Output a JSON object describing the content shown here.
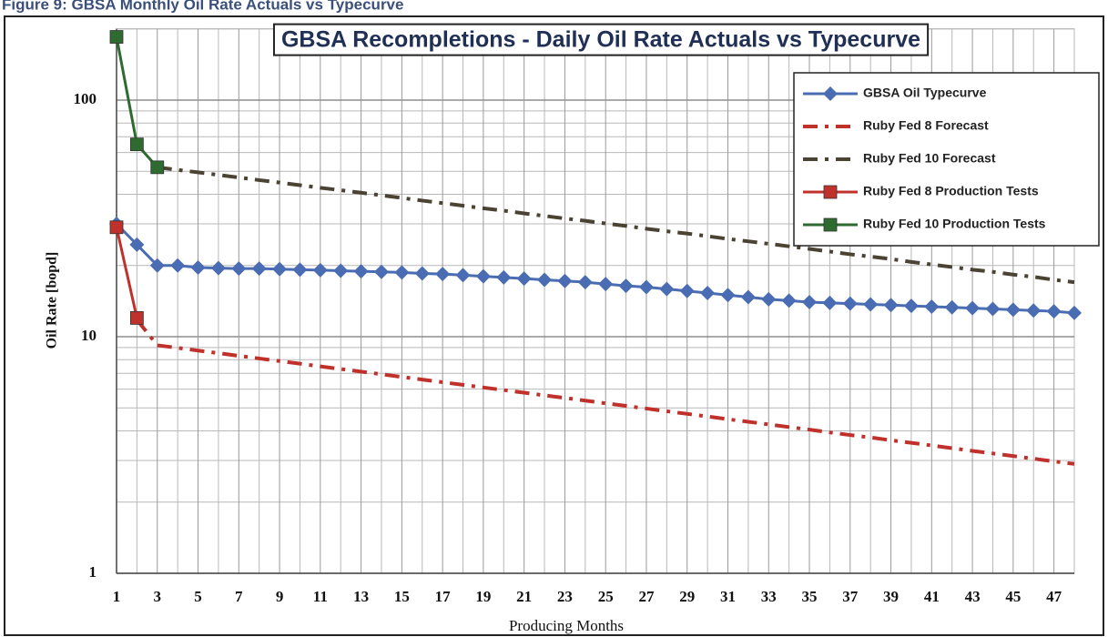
{
  "caption": "Figure 9: GBSA Monthly Oil Rate Actuals vs Typecurve",
  "chart_data": {
    "type": "line",
    "title": "GBSA Recompletions - Daily Oil Rate Actuals vs Typecurve",
    "x_label": "Producing Months",
    "y_label": "Oil Rate [bopd]",
    "ylog": true,
    "grid": true,
    "legend": "upper right",
    "x": [
      1,
      2,
      3,
      4,
      5,
      6,
      7,
      8,
      9,
      10,
      11,
      12,
      13,
      14,
      15,
      16,
      17,
      18,
      19,
      20,
      21,
      22,
      23,
      24,
      25,
      26,
      27,
      28,
      29,
      30,
      31,
      32,
      33,
      34,
      35,
      36,
      37,
      38,
      39,
      40,
      41,
      42,
      43,
      44,
      45,
      46,
      47,
      48
    ],
    "xlim": [
      1,
      48
    ],
    "xticks": [
      1,
      3,
      5,
      7,
      9,
      11,
      13,
      15,
      17,
      19,
      21,
      23,
      25,
      27,
      29,
      31,
      33,
      35,
      37,
      39,
      41,
      43,
      45,
      47
    ],
    "x_minor_ticks": [
      2,
      4,
      6,
      8,
      10,
      12,
      14,
      16,
      18,
      20,
      22,
      24,
      26,
      28,
      30,
      32,
      34,
      36,
      38,
      40,
      42,
      44,
      46,
      48
    ],
    "ylim": [
      1,
      200
    ],
    "yticks": [
      1,
      10,
      100
    ],
    "y_minor_ticks": [
      2,
      3,
      4,
      5,
      6,
      7,
      8,
      9,
      20,
      30,
      40,
      50,
      60,
      70,
      80,
      90,
      200
    ],
    "series": [
      {
        "name": "GBSA Oil Typecurve",
        "color": "#4a6cb3",
        "marker": "diamond",
        "dash": "solid",
        "values": [
          30,
          24.5,
          20,
          20,
          19.6,
          19.5,
          19.4,
          19.4,
          19.3,
          19.2,
          19.1,
          19,
          18.9,
          18.8,
          18.7,
          18.5,
          18.4,
          18.2,
          18,
          17.8,
          17.6,
          17.4,
          17.2,
          17,
          16.7,
          16.4,
          16.2,
          15.9,
          15.6,
          15.3,
          15,
          14.7,
          14.4,
          14.2,
          14,
          13.9,
          13.8,
          13.7,
          13.6,
          13.5,
          13.4,
          13.3,
          13.2,
          13.1,
          13,
          12.9,
          12.8,
          12.6
        ]
      },
      {
        "name": "Ruby Fed 8 Forecast",
        "color": "#c0312b",
        "marker": "none",
        "dash": "dashdot",
        "values": [
          null,
          11.8,
          9.2,
          8.97,
          8.74,
          8.52,
          8.3,
          8.09,
          7.89,
          7.69,
          7.49,
          7.3,
          7.12,
          6.94,
          6.76,
          6.59,
          6.42,
          6.26,
          6.1,
          5.95,
          5.8,
          5.65,
          5.51,
          5.37,
          5.23,
          5.1,
          4.97,
          4.84,
          4.72,
          4.6,
          4.48,
          4.37,
          4.26,
          4.15,
          4.05,
          3.94,
          3.84,
          3.75,
          3.65,
          3.56,
          3.47,
          3.38,
          3.29,
          3.21,
          3.13,
          3.05,
          2.97,
          2.9
        ]
      },
      {
        "name": "Ruby Fed 10 Forecast",
        "color": "#4a4232",
        "marker": "none",
        "dash": "dashdot",
        "values": [
          null,
          null,
          52,
          50.7,
          49.5,
          48.3,
          47.1,
          45.9,
          44.8,
          43.7,
          42.6,
          41.6,
          40.6,
          39.6,
          38.6,
          37.6,
          36.7,
          35.8,
          34.9,
          34.1,
          33.2,
          32.4,
          31.6,
          30.9,
          30.1,
          29.4,
          28.6,
          27.9,
          27.3,
          26.6,
          25.9,
          25.3,
          24.7,
          24.1,
          23.5,
          22.9,
          22.3,
          21.8,
          21.3,
          20.7,
          20.2,
          19.7,
          19.2,
          18.8,
          18.3,
          17.9,
          17.4,
          17
        ]
      },
      {
        "name": "Ruby Fed 8 Production Tests",
        "color": "#c0312b",
        "marker": "square",
        "dash": "solid",
        "values": [
          29,
          12,
          null,
          null,
          null,
          null,
          null,
          null,
          null,
          null,
          null,
          null,
          null,
          null,
          null,
          null,
          null,
          null,
          null,
          null,
          null,
          null,
          null,
          null,
          null,
          null,
          null,
          null,
          null,
          null,
          null,
          null,
          null,
          null,
          null,
          null,
          null,
          null,
          null,
          null,
          null,
          null,
          null,
          null,
          null,
          null,
          null,
          null
        ]
      },
      {
        "name": "Ruby Fed 10 Production Tests",
        "color": "#2e6b30",
        "marker": "square",
        "dash": "solid",
        "values": [
          185,
          65,
          52,
          null,
          null,
          null,
          null,
          null,
          null,
          null,
          null,
          null,
          null,
          null,
          null,
          null,
          null,
          null,
          null,
          null,
          null,
          null,
          null,
          null,
          null,
          null,
          null,
          null,
          null,
          null,
          null,
          null,
          null,
          null,
          null,
          null,
          null,
          null,
          null,
          null,
          null,
          null,
          null,
          null,
          null,
          null,
          null,
          null
        ]
      }
    ]
  }
}
